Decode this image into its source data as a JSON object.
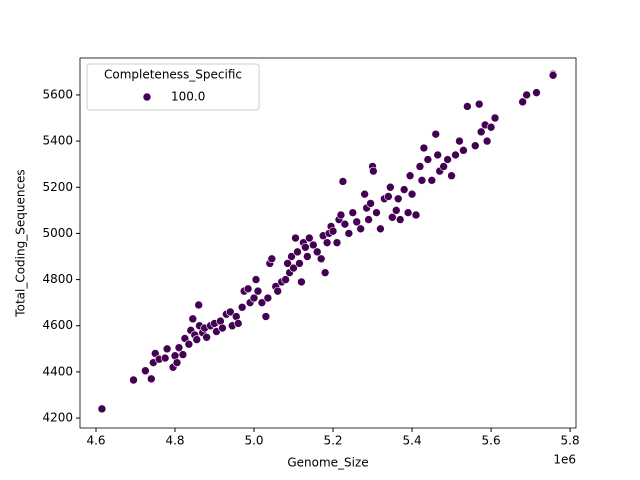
{
  "chart_data": {
    "type": "scatter",
    "x_label": "Genome_Size",
    "y_label": "Total_Coding_Sequences",
    "x_offset_label": "1e6",
    "legend_title": "Completeness_Specific",
    "legend_loc": "upper left",
    "xlim": [
      4559500,
      5815000
    ],
    "ylim": [
      4157,
      5760
    ],
    "xticks": [
      {
        "value": 4600000,
        "label": "4.6"
      },
      {
        "value": 4800000,
        "label": "4.8"
      },
      {
        "value": 5000000,
        "label": "5.0"
      },
      {
        "value": 5200000,
        "label": "5.2"
      },
      {
        "value": 5400000,
        "label": "5.4"
      },
      {
        "value": 5600000,
        "label": "5.6"
      },
      {
        "value": 5800000,
        "label": "5.8"
      }
    ],
    "yticks": [
      4200,
      4400,
      4600,
      4800,
      5000,
      5200,
      5400,
      5600
    ],
    "series": [
      {
        "name": "100.0",
        "color": "#440154",
        "x": [
          4615000,
          4695000,
          4725000,
          4740000,
          4745000,
          4750000,
          4760000,
          4775000,
          4780000,
          4795000,
          4800000,
          4805000,
          4810000,
          4820000,
          4825000,
          4835000,
          4840000,
          4845000,
          4850000,
          4855000,
          4860000,
          4862000,
          4870000,
          4875000,
          4880000,
          4890000,
          4900000,
          4905000,
          4915000,
          4920000,
          4930000,
          4940000,
          4945000,
          4955000,
          4960000,
          4970000,
          4975000,
          4985000,
          4990000,
          5000000,
          5005000,
          5010000,
          5020000,
          5030000,
          5035000,
          5040000,
          5045000,
          5055000,
          5060000,
          5070000,
          5080000,
          5085000,
          5090000,
          5095000,
          5100000,
          5105000,
          5110000,
          5115000,
          5120000,
          5125000,
          5130000,
          5135000,
          5140000,
          5150000,
          5160000,
          5170000,
          5175000,
          5180000,
          5185000,
          5190000,
          5195000,
          5200000,
          5210000,
          5215000,
          5220000,
          5225000,
          5230000,
          5240000,
          5250000,
          5260000,
          5270000,
          5280000,
          5285000,
          5290000,
          5295000,
          5300000,
          5302000,
          5310000,
          5320000,
          5330000,
          5340000,
          5345000,
          5350000,
          5360000,
          5365000,
          5370000,
          5380000,
          5390000,
          5395000,
          5400000,
          5410000,
          5420000,
          5425000,
          5430000,
          5440000,
          5450000,
          5460000,
          5465000,
          5470000,
          5480000,
          5490000,
          5500000,
          5510000,
          5520000,
          5530000,
          5540000,
          5560000,
          5570000,
          5575000,
          5585000,
          5590000,
          5600000,
          5610000,
          5680000,
          5690000,
          5715000,
          5757000,
          5757000
        ],
        "values": [
          4240,
          4365,
          4405,
          4370,
          4440,
          4480,
          4455,
          4460,
          4500,
          4420,
          4470,
          4440,
          4505,
          4475,
          4545,
          4520,
          4580,
          4630,
          4560,
          4540,
          4690,
          4600,
          4570,
          4590,
          4550,
          4600,
          4610,
          4575,
          4620,
          4590,
          4650,
          4660,
          4600,
          4640,
          4610,
          4680,
          4750,
          4760,
          4700,
          4720,
          4800,
          4750,
          4700,
          4640,
          4720,
          4870,
          4890,
          4770,
          4750,
          4790,
          4800,
          4870,
          4830,
          4900,
          4850,
          4980,
          4920,
          4870,
          4790,
          4960,
          4940,
          4900,
          4980,
          4950,
          4920,
          4890,
          4990,
          4830,
          4960,
          5000,
          5030,
          5010,
          4960,
          5060,
          5080,
          5225,
          5040,
          5000,
          5090,
          5050,
          5020,
          5170,
          5110,
          5060,
          5130,
          5290,
          5270,
          5090,
          5020,
          5150,
          5160,
          5200,
          5070,
          5100,
          5150,
          5060,
          5190,
          5090,
          5250,
          5170,
          5080,
          5290,
          5230,
          5370,
          5320,
          5230,
          5430,
          5340,
          5270,
          5290,
          5320,
          5250,
          5340,
          5400,
          5360,
          5550,
          5380,
          5560,
          5440,
          5470,
          5400,
          5460,
          5500,
          5570,
          5600,
          5610,
          5690,
          5685
        ]
      }
    ]
  }
}
